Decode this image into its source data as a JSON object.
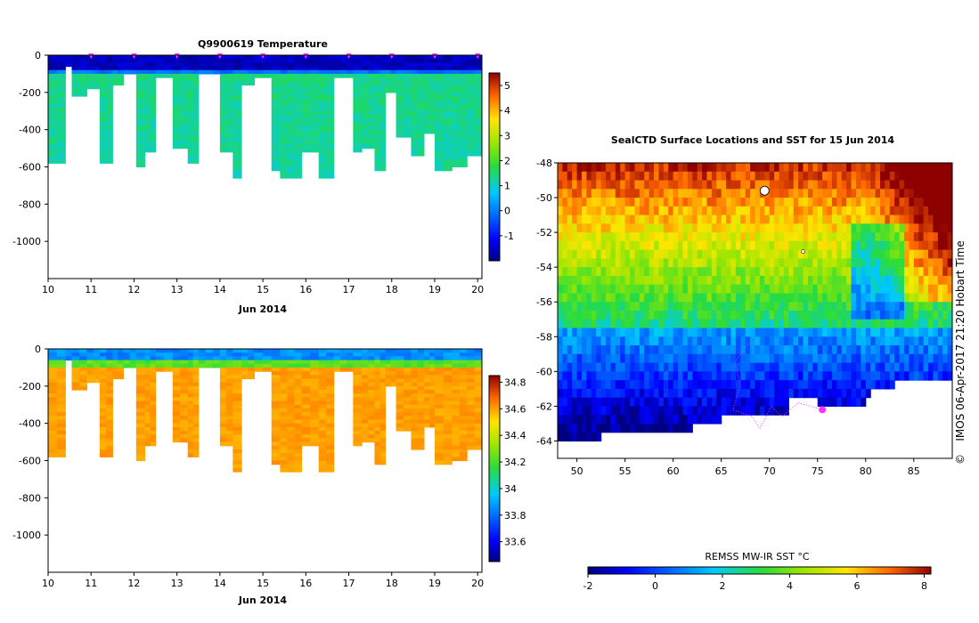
{
  "chart_data": [
    {
      "id": "temperature",
      "type": "heatmap",
      "title": "Q9900619  Temperature",
      "xlabel": "Jun 2014",
      "xlim": [
        10,
        20.1
      ],
      "x_ticks": [
        10,
        11,
        12,
        13,
        14,
        15,
        16,
        17,
        18,
        19,
        20
      ],
      "ylim": [
        -1200,
        0
      ],
      "y_ticks": [
        0,
        -200,
        -400,
        -600,
        -800,
        -1000
      ],
      "colorbar": {
        "min": -2,
        "max": 5.5,
        "ticks": [
          5,
          4,
          3,
          2,
          1,
          0,
          -1
        ]
      },
      "surface_value": -1.6,
      "deep_value": 1.4,
      "profile_markers_day": [
        11.0,
        12.0,
        13.0,
        14.0,
        15.0,
        16.0,
        17.0,
        18.0,
        19.0,
        20.0
      ],
      "profiles": [
        {
          "start": 10.0,
          "end": 10.4,
          "depth": 580
        },
        {
          "start": 10.4,
          "end": 10.55,
          "depth": 60
        },
        {
          "start": 10.55,
          "end": 10.9,
          "depth": 210
        },
        {
          "start": 10.9,
          "end": 11.2,
          "depth": 180
        },
        {
          "start": 11.2,
          "end": 11.5,
          "depth": 580
        },
        {
          "start": 11.5,
          "end": 11.75,
          "depth": 160
        },
        {
          "start": 11.75,
          "end": 12.05,
          "depth": 100
        },
        {
          "start": 12.05,
          "end": 12.25,
          "depth": 590
        },
        {
          "start": 12.25,
          "end": 12.5,
          "depth": 510
        },
        {
          "start": 12.5,
          "end": 12.9,
          "depth": 120
        },
        {
          "start": 12.9,
          "end": 13.25,
          "depth": 500
        },
        {
          "start": 13.25,
          "end": 13.5,
          "depth": 570
        },
        {
          "start": 13.5,
          "end": 14.0,
          "depth": 100
        },
        {
          "start": 14.0,
          "end": 14.3,
          "depth": 520
        },
        {
          "start": 14.3,
          "end": 14.5,
          "depth": 660
        },
        {
          "start": 14.5,
          "end": 14.8,
          "depth": 150
        },
        {
          "start": 14.8,
          "end": 15.2,
          "depth": 120
        },
        {
          "start": 15.2,
          "end": 15.4,
          "depth": 610
        },
        {
          "start": 15.4,
          "end": 15.9,
          "depth": 650
        },
        {
          "start": 15.9,
          "end": 16.3,
          "depth": 510
        },
        {
          "start": 16.3,
          "end": 16.65,
          "depth": 650
        },
        {
          "start": 16.65,
          "end": 17.1,
          "depth": 110
        },
        {
          "start": 17.1,
          "end": 17.3,
          "depth": 520
        },
        {
          "start": 17.3,
          "end": 17.6,
          "depth": 500
        },
        {
          "start": 17.6,
          "end": 17.85,
          "depth": 610
        },
        {
          "start": 17.85,
          "end": 18.1,
          "depth": 200
        },
        {
          "start": 18.1,
          "end": 18.45,
          "depth": 430
        },
        {
          "start": 18.45,
          "end": 18.75,
          "depth": 530
        },
        {
          "start": 18.75,
          "end": 19.0,
          "depth": 420
        },
        {
          "start": 19.0,
          "end": 19.4,
          "depth": 610
        },
        {
          "start": 19.4,
          "end": 19.75,
          "depth": 590
        },
        {
          "start": 19.75,
          "end": 20.1,
          "depth": 540
        }
      ]
    },
    {
      "id": "salinity",
      "type": "heatmap",
      "title": "",
      "xlabel": "Jun 2014",
      "xlim": [
        10,
        20.1
      ],
      "x_ticks": [
        10,
        11,
        12,
        13,
        14,
        15,
        16,
        17,
        18,
        19,
        20
      ],
      "ylim": [
        -1200,
        0
      ],
      "y_ticks": [
        0,
        -200,
        -400,
        -600,
        -800,
        -1000
      ],
      "colorbar": {
        "min": 33.45,
        "max": 34.85,
        "ticks": [
          "34.8",
          "34.6",
          "34.4",
          "34.2",
          "34",
          "33.8",
          "33.6"
        ]
      },
      "surface_value": 33.85,
      "deep_value": 34.6,
      "profiles": [
        {
          "start": 10.0,
          "end": 10.4,
          "depth": 580
        },
        {
          "start": 10.4,
          "end": 10.55,
          "depth": 60
        },
        {
          "start": 10.55,
          "end": 10.9,
          "depth": 210
        },
        {
          "start": 10.9,
          "end": 11.2,
          "depth": 180
        },
        {
          "start": 11.2,
          "end": 11.5,
          "depth": 580
        },
        {
          "start": 11.5,
          "end": 11.75,
          "depth": 160
        },
        {
          "start": 11.75,
          "end": 12.05,
          "depth": 100
        },
        {
          "start": 12.05,
          "end": 12.25,
          "depth": 590
        },
        {
          "start": 12.25,
          "end": 12.5,
          "depth": 510
        },
        {
          "start": 12.5,
          "end": 12.9,
          "depth": 120
        },
        {
          "start": 12.9,
          "end": 13.25,
          "depth": 500
        },
        {
          "start": 13.25,
          "end": 13.5,
          "depth": 570
        },
        {
          "start": 13.5,
          "end": 14.0,
          "depth": 100
        },
        {
          "start": 14.0,
          "end": 14.3,
          "depth": 520
        },
        {
          "start": 14.3,
          "end": 14.5,
          "depth": 660
        },
        {
          "start": 14.5,
          "end": 14.8,
          "depth": 150
        },
        {
          "start": 14.8,
          "end": 15.2,
          "depth": 120
        },
        {
          "start": 15.2,
          "end": 15.4,
          "depth": 610
        },
        {
          "start": 15.4,
          "end": 15.9,
          "depth": 650
        },
        {
          "start": 15.9,
          "end": 16.3,
          "depth": 510
        },
        {
          "start": 16.3,
          "end": 16.65,
          "depth": 650
        },
        {
          "start": 16.65,
          "end": 17.1,
          "depth": 110
        },
        {
          "start": 17.1,
          "end": 17.3,
          "depth": 520
        },
        {
          "start": 17.3,
          "end": 17.6,
          "depth": 500
        },
        {
          "start": 17.6,
          "end": 17.85,
          "depth": 610
        },
        {
          "start": 17.85,
          "end": 18.1,
          "depth": 200
        },
        {
          "start": 18.1,
          "end": 18.45,
          "depth": 430
        },
        {
          "start": 18.45,
          "end": 18.75,
          "depth": 530
        },
        {
          "start": 18.75,
          "end": 19.0,
          "depth": 420
        },
        {
          "start": 19.0,
          "end": 19.4,
          "depth": 610
        },
        {
          "start": 19.4,
          "end": 19.75,
          "depth": 590
        },
        {
          "start": 19.75,
          "end": 20.1,
          "depth": 540
        }
      ]
    },
    {
      "id": "sst_map",
      "type": "heatmap",
      "title": "SealCTD Surface Locations and SST for 15 Jun 2014",
      "xlim": [
        48,
        89
      ],
      "ylim": [
        -65,
        -48
      ],
      "x_ticks": [
        50,
        55,
        60,
        65,
        70,
        75,
        80,
        85
      ],
      "y_ticks": [
        -48,
        -50,
        -52,
        -54,
        -56,
        -58,
        -60,
        -62,
        -64
      ],
      "colorbar_label": "REMSS MW-IR SST °C",
      "colorbar": {
        "min": -2,
        "max": 8.2,
        "ticks": [
          -2,
          0,
          2,
          4,
          6,
          8
        ]
      },
      "side_label": "IMOS 06-Apr-2017 21:20 Hobart Time",
      "copyright": "©",
      "seal_position": {
        "lon": 75.5,
        "lat": -62.2
      }
    }
  ]
}
